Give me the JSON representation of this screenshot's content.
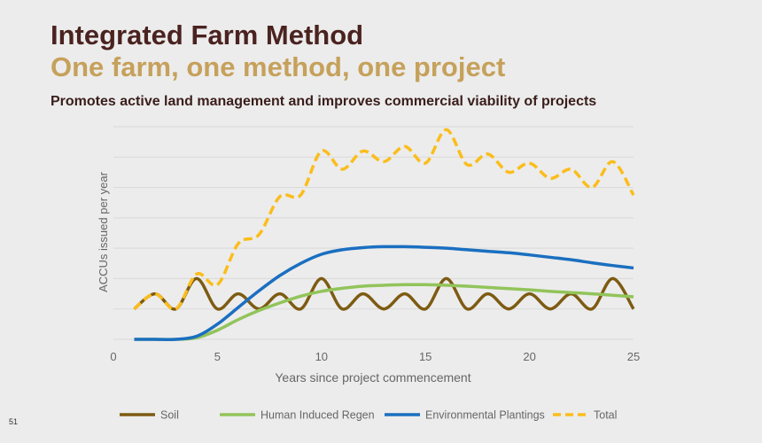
{
  "slide": {
    "title": "Integrated Farm Method",
    "subtitle": "One farm, one method, one project",
    "tagline": "Promotes active land management and improves commercial viability of projects",
    "page_number": "51"
  },
  "colors": {
    "title": "#4a2320",
    "subtitle": "#c6a15b",
    "soil": "#7d5b12",
    "hir": "#92c45a",
    "env": "#1a6fc0",
    "total": "#fbbd1c",
    "grid": "#d9d9d9"
  },
  "chart_data": {
    "type": "line",
    "xlabel": "Years since project commencement",
    "ylabel": "ACCUs issued  per year",
    "xlim": [
      0,
      25
    ],
    "ylim": [
      0,
      7
    ],
    "x_ticks": [
      0,
      5,
      10,
      15,
      20,
      25
    ],
    "y_tick_labels": "none",
    "grid": "horizontal",
    "legend_position": "bottom",
    "series": [
      {
        "name": "Soil",
        "key": "soil",
        "style": "solid",
        "x": [
          1,
          2,
          3,
          4,
          5,
          6,
          7,
          8,
          9,
          10,
          11,
          12,
          13,
          14,
          15,
          16,
          17,
          18,
          19,
          20,
          21,
          22,
          23,
          24,
          25
        ],
        "values": [
          1.0,
          1.5,
          1.0,
          2.0,
          1.0,
          1.5,
          1.0,
          1.5,
          1.0,
          2.0,
          1.0,
          1.5,
          1.0,
          1.5,
          1.0,
          2.0,
          1.0,
          1.5,
          1.0,
          1.5,
          1.0,
          1.5,
          1.0,
          2.0,
          1.0
        ]
      },
      {
        "name": "Human Induced Regen",
        "key": "hir",
        "style": "solid",
        "x": [
          1,
          2,
          3,
          4,
          5,
          6,
          7,
          8,
          9,
          10,
          11,
          12,
          13,
          14,
          15,
          16,
          17,
          18,
          19,
          20,
          21,
          22,
          23,
          24,
          25
        ],
        "values": [
          0.0,
          0.0,
          0.0,
          0.05,
          0.3,
          0.65,
          0.95,
          1.2,
          1.42,
          1.58,
          1.68,
          1.75,
          1.78,
          1.8,
          1.8,
          1.78,
          1.75,
          1.71,
          1.67,
          1.63,
          1.58,
          1.54,
          1.5,
          1.45,
          1.4
        ]
      },
      {
        "name": "Environmental Plantings",
        "key": "env",
        "style": "solid",
        "x": [
          1,
          2,
          3,
          4,
          5,
          6,
          7,
          8,
          9,
          10,
          11,
          12,
          13,
          14,
          15,
          16,
          17,
          18,
          19,
          20,
          21,
          22,
          23,
          24,
          25
        ],
        "values": [
          0.0,
          0.0,
          0.0,
          0.1,
          0.5,
          1.05,
          1.6,
          2.1,
          2.5,
          2.8,
          2.95,
          3.02,
          3.05,
          3.05,
          3.03,
          3.0,
          2.95,
          2.9,
          2.85,
          2.78,
          2.7,
          2.62,
          2.52,
          2.43,
          2.35
        ]
      },
      {
        "name": "Total",
        "key": "total",
        "style": "dashed",
        "x": [
          1,
          2,
          3,
          4,
          5,
          6,
          7,
          8,
          9,
          10,
          11,
          12,
          13,
          14,
          15,
          16,
          17,
          18,
          19,
          20,
          21,
          22,
          23,
          24,
          25
        ],
        "values": [
          1.0,
          1.5,
          1.0,
          2.15,
          1.8,
          3.15,
          3.45,
          4.7,
          4.75,
          6.2,
          5.6,
          6.2,
          5.85,
          6.35,
          5.8,
          6.9,
          5.75,
          6.1,
          5.5,
          5.8,
          5.3,
          5.6,
          5.0,
          5.85,
          4.75
        ]
      }
    ]
  }
}
